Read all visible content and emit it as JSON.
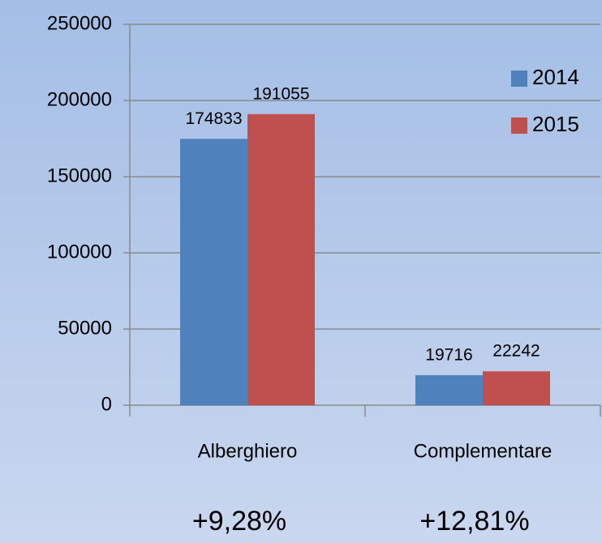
{
  "chart_data": {
    "type": "bar",
    "categories": [
      "Alberghiero",
      "Complementare"
    ],
    "series": [
      {
        "name": "2014",
        "color": "#4f81bd",
        "values": [
          174833,
          19716
        ]
      },
      {
        "name": "2015",
        "color": "#c0504d",
        "values": [
          191055,
          22242
        ]
      }
    ],
    "annotations": [
      "+9,28%",
      "+12,81%"
    ],
    "ylim": [
      0,
      250000
    ],
    "yticks": [
      0,
      50000,
      100000,
      150000,
      200000,
      250000
    ],
    "grid": true,
    "legend": "top-right"
  }
}
